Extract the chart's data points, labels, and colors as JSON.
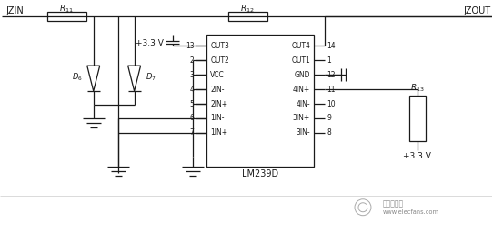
{
  "bg_color": "#f0f0f0",
  "line_color": "#1a1a1a",
  "text_color": "#1a1a1a",
  "fig_width": 5.42,
  "fig_height": 2.57,
  "dpi": 100,
  "ic_label": "LM239D",
  "watermark_text": "www.elecfans.com",
  "watermark_cn": "电子发烧友"
}
